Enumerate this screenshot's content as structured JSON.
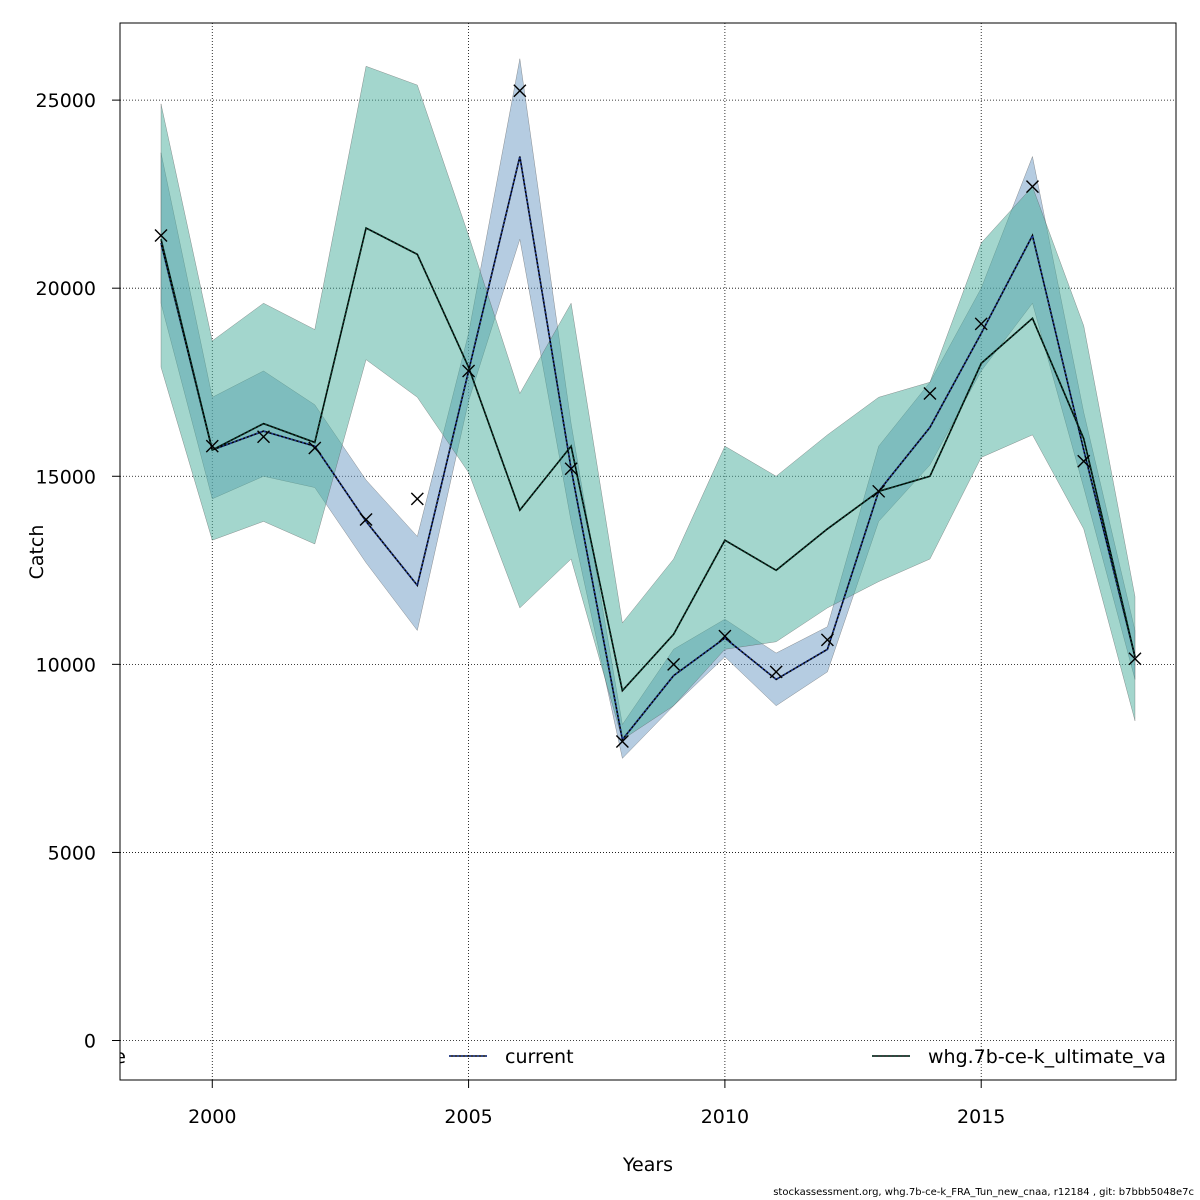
{
  "chart_data": {
    "type": "line",
    "xlabel": "Years",
    "ylabel": "Catch",
    "xlim": [
      1998.2,
      2018.8
    ],
    "ylim": [
      -1050,
      27050
    ],
    "xticks": [
      2000,
      2005,
      2010,
      2015
    ],
    "yticks": [
      0,
      5000,
      10000,
      15000,
      20000,
      25000
    ],
    "grid": true,
    "legend_position": "bottom-inside",
    "x": [
      1999,
      2000,
      2001,
      2002,
      2003,
      2004,
      2005,
      2006,
      2007,
      2008,
      2009,
      2010,
      2011,
      2012,
      2013,
      2014,
      2015,
      2016,
      2017,
      2018
    ],
    "observed": [
      21400,
      15800,
      16050,
      15750,
      13850,
      14400,
      17800,
      25250,
      15200,
      7950,
      10000,
      10750,
      9800,
      10650,
      14600,
      17200,
      19050,
      22700,
      15400,
      10150
    ],
    "series": [
      {
        "name": "current",
        "color": "#6b9ac4",
        "line_color": "#1f3a93",
        "values": [
          21200,
          15700,
          16200,
          15800,
          13800,
          12100,
          17800,
          23500,
          15200,
          8000,
          9700,
          10700,
          9600,
          10400,
          14600,
          16300,
          18800,
          21400,
          15700,
          10200
        ],
        "lower": [
          19600,
          14400,
          15000,
          14700,
          12700,
          10900,
          17000,
          21300,
          13800,
          7500,
          8900,
          10200,
          8900,
          9800,
          13800,
          15300,
          17800,
          19600,
          14700,
          9600
        ],
        "upper": [
          23600,
          17100,
          17800,
          16900,
          14900,
          13400,
          18800,
          26100,
          16400,
          8400,
          10400,
          11200,
          10300,
          11000,
          15800,
          17500,
          20000,
          23500,
          16700,
          10900
        ]
      },
      {
        "name": "whg.7b-ce-k_ultimate_va",
        "color": "#47ae9c",
        "line_color": "#0b3d2c",
        "values": [
          21300,
          15700,
          16400,
          15900,
          21600,
          20900,
          17900,
          14100,
          15800,
          9300,
          10800,
          13300,
          12500,
          13600,
          14600,
          15000,
          18000,
          19200,
          16000,
          10200
        ],
        "lower": [
          17900,
          13300,
          13800,
          13200,
          18100,
          17100,
          15100,
          11500,
          12800,
          8000,
          8900,
          10400,
          10600,
          11500,
          12200,
          12800,
          15500,
          16100,
          13600,
          8500
        ],
        "upper": [
          24900,
          18600,
          19600,
          18900,
          25900,
          25400,
          21400,
          17200,
          19600,
          11100,
          12800,
          15800,
          15000,
          16100,
          17100,
          17500,
          21200,
          22700,
          19000,
          11800
        ]
      }
    ],
    "legend_entries": [
      "e",
      "current",
      "whg.7b-ce-k_ultimate_va"
    ]
  },
  "footer": "stockassessment.org, whg.7b-ce-k_FRA_Tun_new_cnaa, r12184 , git: b7bbb5048e7c"
}
